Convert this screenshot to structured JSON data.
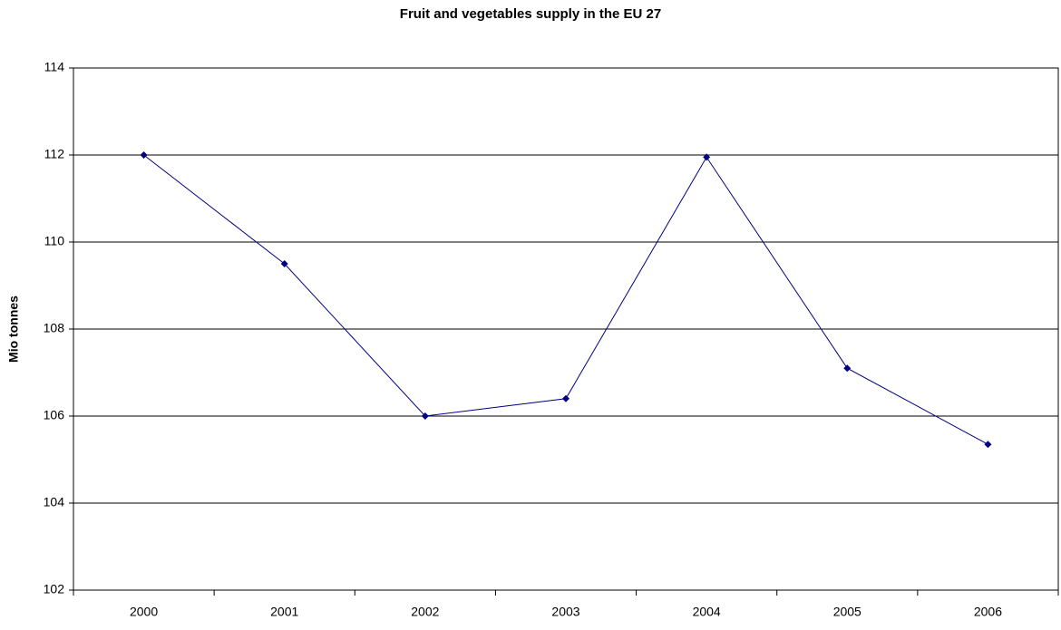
{
  "chart_data": {
    "type": "line",
    "title": "Fruit and vegetables supply in the EU 27",
    "y_label": "Mio tonnes",
    "categories": [
      "2000",
      "2001",
      "2002",
      "2003",
      "2004",
      "2005",
      "2006"
    ],
    "values": [
      112.0,
      109.5,
      106.0,
      106.4,
      111.95,
      107.1,
      105.35
    ],
    "color": "#000080",
    "ylim": [
      102,
      114
    ],
    "yticks": [
      102,
      104,
      106,
      108,
      110,
      112,
      114
    ],
    "grid": true
  }
}
